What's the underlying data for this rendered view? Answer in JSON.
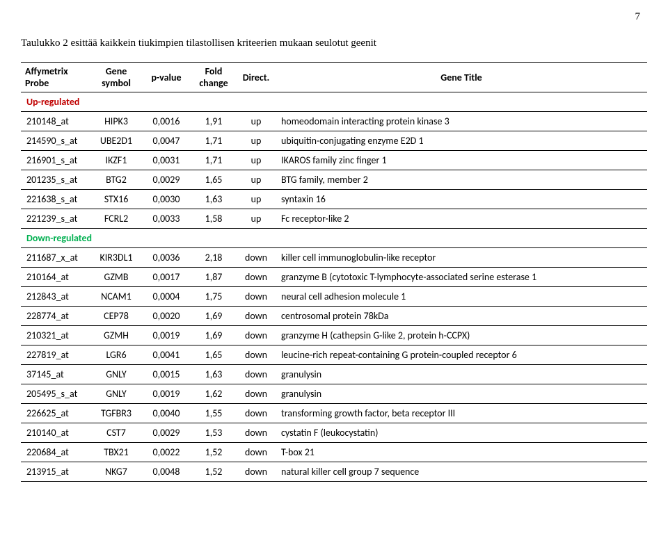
{
  "page_number": "7",
  "caption": "Taulukko 2 esittää kaikkein tiukimpien tilastollisen kriteerien mukaan seulotut geenit",
  "headers": {
    "probe": "Affymetrix Probe",
    "symbol": "Gene symbol",
    "pvalue": "p-value",
    "fold": "Fold change",
    "direct": "Direct.",
    "title": "Gene Title"
  },
  "section_up": "Up-regulated",
  "section_down": "Down-regulated",
  "colors": {
    "up": "#c00000",
    "down": "#00b050",
    "border": "#000000",
    "bg": "#ffffff"
  },
  "rows_up": [
    {
      "probe": "210148_at",
      "sym": "HIPK3",
      "p": "0,0016",
      "fc": "1,91",
      "d": "up",
      "t": "homeodomain interacting protein kinase 3"
    },
    {
      "probe": "214590_s_at",
      "sym": "UBE2D1",
      "p": "0,0047",
      "fc": "1,71",
      "d": "up",
      "t": "ubiquitin-conjugating enzyme E2D 1"
    },
    {
      "probe": "216901_s_at",
      "sym": "IKZF1",
      "p": "0,0031",
      "fc": "1,71",
      "d": "up",
      "t": "IKAROS family zinc finger 1"
    },
    {
      "probe": "201235_s_at",
      "sym": "BTG2",
      "p": "0,0029",
      "fc": "1,65",
      "d": "up",
      "t": "BTG family, member 2"
    },
    {
      "probe": "221638_s_at",
      "sym": "STX16",
      "p": "0,0030",
      "fc": "1,63",
      "d": "up",
      "t": "syntaxin 16"
    },
    {
      "probe": "221239_s_at",
      "sym": "FCRL2",
      "p": "0,0033",
      "fc": "1,58",
      "d": "up",
      "t": "Fc receptor-like 2"
    }
  ],
  "rows_down": [
    {
      "probe": "211687_x_at",
      "sym": "KIR3DL1",
      "p": "0,0036",
      "fc": "2,18",
      "d": "down",
      "t": "killer cell immunoglobulin-like receptor"
    },
    {
      "probe": "210164_at",
      "sym": "GZMB",
      "p": "0,0017",
      "fc": "1,87",
      "d": "down",
      "t": "granzyme B (cytotoxic T-lymphocyte-associated serine esterase 1"
    },
    {
      "probe": "212843_at",
      "sym": "NCAM1",
      "p": "0,0004",
      "fc": "1,75",
      "d": "down",
      "t": "neural cell adhesion molecule 1"
    },
    {
      "probe": "228774_at",
      "sym": "CEP78",
      "p": "0,0020",
      "fc": "1,69",
      "d": "down",
      "t": "centrosomal protein 78kDa"
    },
    {
      "probe": "210321_at",
      "sym": "GZMH",
      "p": "0,0019",
      "fc": "1,69",
      "d": "down",
      "t": "granzyme H (cathepsin G-like 2, protein h-CCPX)"
    },
    {
      "probe": "227819_at",
      "sym": "LGR6",
      "p": "0,0041",
      "fc": "1,65",
      "d": "down",
      "t": "leucine-rich repeat-containing G protein-coupled receptor 6"
    },
    {
      "probe": "37145_at",
      "sym": "GNLY",
      "p": "0,0015",
      "fc": "1,63",
      "d": "down",
      "t": "granulysin"
    },
    {
      "probe": "205495_s_at",
      "sym": "GNLY",
      "p": "0,0019",
      "fc": "1,62",
      "d": "down",
      "t": "granulysin"
    },
    {
      "probe": "226625_at",
      "sym": "TGFBR3",
      "p": "0,0040",
      "fc": "1,55",
      "d": "down",
      "t": "transforming growth factor, beta receptor III"
    },
    {
      "probe": "210140_at",
      "sym": "CST7",
      "p": "0,0029",
      "fc": "1,53",
      "d": "down",
      "t": "cystatin F (leukocystatin)"
    },
    {
      "probe": "220684_at",
      "sym": "TBX21",
      "p": "0,0022",
      "fc": "1,52",
      "d": "down",
      "t": "T-box 21"
    },
    {
      "probe": "213915_at",
      "sym": "NKG7",
      "p": "0,0048",
      "fc": "1,52",
      "d": "down",
      "t": "natural killer cell group 7 sequence"
    }
  ]
}
